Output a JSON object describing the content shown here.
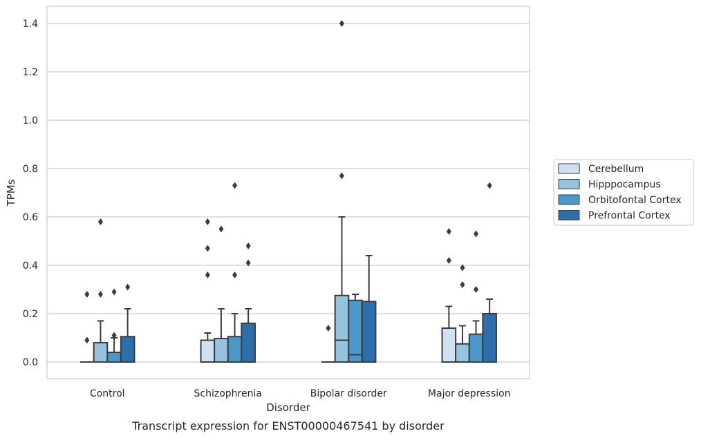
{
  "chart_data": {
    "type": "box",
    "xlabel": "Disorder",
    "ylabel": "TPMs",
    "caption": "Transcript expression for ENST00000467541 by disorder",
    "ylim": [
      -0.07,
      1.47
    ],
    "yticks": [
      0.0,
      0.2,
      0.4,
      0.6,
      0.8,
      1.0,
      1.2,
      1.4
    ],
    "ytick_labels": [
      "0.0",
      "0.2",
      "0.4",
      "0.6",
      "0.8",
      "1.0",
      "1.2",
      "1.4"
    ],
    "grid": "horizontal",
    "legend_position": "right",
    "categories": [
      "Control",
      "Schizophrenia",
      "Bipolar disorder",
      "Major depression"
    ],
    "series": [
      {
        "name": "Cerebellum",
        "color": "#d0e1f2",
        "boxes": [
          {
            "q1": 0.0,
            "median": 0.0,
            "q3": 0.0,
            "whisker_low": 0.0,
            "whisker_high": 0.0,
            "outliers": [
              0.09,
              0.28
            ]
          },
          {
            "q1": 0.0,
            "median": 0.0,
            "q3": 0.09,
            "whisker_low": 0.0,
            "whisker_high": 0.12,
            "outliers": [
              0.36,
              0.47,
              0.58
            ]
          },
          {
            "q1": 0.0,
            "median": 0.0,
            "q3": 0.0,
            "whisker_low": 0.0,
            "whisker_high": 0.0,
            "outliers": [
              0.14
            ]
          },
          {
            "q1": 0.0,
            "median": 0.0,
            "q3": 0.14,
            "whisker_low": 0.0,
            "whisker_high": 0.23,
            "outliers": [
              0.42,
              0.54
            ]
          }
        ]
      },
      {
        "name": "Hipppocampus",
        "color": "#94c4df",
        "boxes": [
          {
            "q1": 0.0,
            "median": 0.0,
            "q3": 0.08,
            "whisker_low": 0.0,
            "whisker_high": 0.17,
            "outliers": [
              0.28,
              0.58
            ]
          },
          {
            "q1": 0.0,
            "median": 0.0,
            "q3": 0.097,
            "whisker_low": 0.0,
            "whisker_high": 0.22,
            "outliers": [
              0.55
            ]
          },
          {
            "q1": 0.0,
            "median": 0.09,
            "q3": 0.275,
            "whisker_low": 0.0,
            "whisker_high": 0.6,
            "outliers": [
              0.77,
              1.4
            ]
          },
          {
            "q1": 0.0,
            "median": 0.0,
            "q3": 0.075,
            "whisker_low": 0.0,
            "whisker_high": 0.15,
            "outliers": [
              0.32,
              0.39
            ]
          }
        ]
      },
      {
        "name": "Orbitofontal Cortex",
        "color": "#4a98c9",
        "boxes": [
          {
            "q1": 0.0,
            "median": 0.0,
            "q3": 0.04,
            "whisker_low": 0.0,
            "whisker_high": 0.1,
            "outliers": [
              0.11,
              0.29
            ]
          },
          {
            "q1": 0.0,
            "median": 0.0,
            "q3": 0.105,
            "whisker_low": 0.0,
            "whisker_high": 0.2,
            "outliers": [
              0.36,
              0.73
            ]
          },
          {
            "q1": 0.0,
            "median": 0.03,
            "q3": 0.255,
            "whisker_low": 0.0,
            "whisker_high": 0.28,
            "outliers": []
          },
          {
            "q1": 0.0,
            "median": 0.0,
            "q3": 0.115,
            "whisker_low": 0.0,
            "whisker_high": 0.17,
            "outliers": [
              0.3,
              0.53
            ]
          }
        ]
      },
      {
        "name": "Prefrontal Cortex",
        "color": "#2d6fad",
        "boxes": [
          {
            "q1": 0.0,
            "median": 0.0,
            "q3": 0.105,
            "whisker_low": 0.0,
            "whisker_high": 0.22,
            "outliers": [
              0.31
            ]
          },
          {
            "q1": 0.0,
            "median": 0.0,
            "q3": 0.16,
            "whisker_low": 0.0,
            "whisker_high": 0.22,
            "outliers": [
              0.41,
              0.48
            ]
          },
          {
            "q1": 0.0,
            "median": 0.0,
            "q3": 0.25,
            "whisker_low": 0.0,
            "whisker_high": 0.44,
            "outliers": []
          },
          {
            "q1": 0.0,
            "median": 0.0,
            "q3": 0.2,
            "whisker_low": 0.0,
            "whisker_high": 0.26,
            "outliers": [
              0.73
            ]
          }
        ]
      }
    ]
  }
}
